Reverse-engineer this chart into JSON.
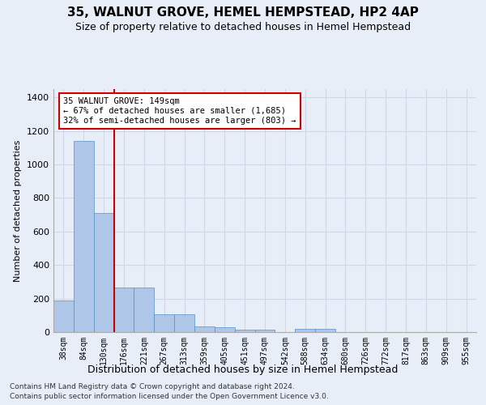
{
  "title": "35, WALNUT GROVE, HEMEL HEMPSTEAD, HP2 4AP",
  "subtitle": "Size of property relative to detached houses in Hemel Hempstead",
  "xlabel": "Distribution of detached houses by size in Hemel Hempstead",
  "ylabel": "Number of detached properties",
  "footnote1": "Contains HM Land Registry data © Crown copyright and database right 2024.",
  "footnote2": "Contains public sector information licensed under the Open Government Licence v3.0.",
  "bin_labels": [
    "38sqm",
    "84sqm",
    "130sqm",
    "176sqm",
    "221sqm",
    "267sqm",
    "313sqm",
    "359sqm",
    "405sqm",
    "451sqm",
    "497sqm",
    "542sqm",
    "588sqm",
    "634sqm",
    "680sqm",
    "726sqm",
    "772sqm",
    "817sqm",
    "863sqm",
    "909sqm",
    "955sqm"
  ],
  "bar_values": [
    190,
    1140,
    710,
    265,
    265,
    105,
    105,
    35,
    30,
    15,
    15,
    0,
    20,
    20,
    0,
    0,
    0,
    0,
    0,
    0,
    0
  ],
  "bar_color": "#aec6e8",
  "bar_edge_color": "#5a8fc2",
  "grid_color": "#d0d8e8",
  "background_color": "#e8eef8",
  "vline_color": "#cc0000",
  "vline_x": 2.5,
  "annotation_text": "35 WALNUT GROVE: 149sqm\n← 67% of detached houses are smaller (1,685)\n32% of semi-detached houses are larger (803) →",
  "annotation_box_color": "#ffffff",
  "annotation_box_edge": "#cc0000",
  "ylim": [
    0,
    1450
  ],
  "yticks": [
    0,
    200,
    400,
    600,
    800,
    1000,
    1200,
    1400
  ],
  "title_fontsize": 11,
  "subtitle_fontsize": 9
}
